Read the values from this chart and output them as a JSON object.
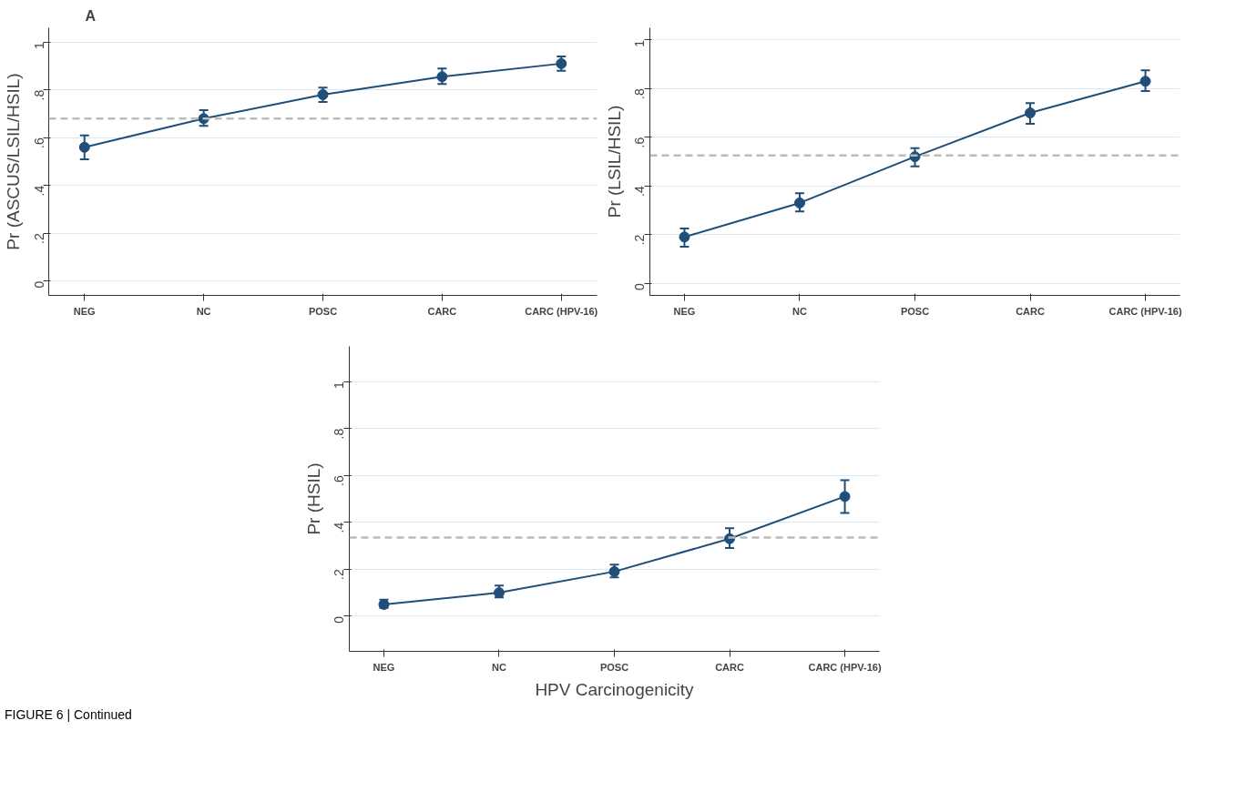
{
  "chart_data": [
    {
      "type": "line",
      "ylabel": "Pr (ASCUS/LSIL/HSIL)",
      "annotations": [
        "A"
      ],
      "categories": [
        "NEG",
        "NC",
        "POSC",
        "CARC",
        "CARC (HPV-16)"
      ],
      "series": [
        {
          "color": "#1f4e79",
          "values": [
            0.56,
            0.68,
            0.78,
            0.855,
            0.91
          ],
          "errors": [
            [
              0.51,
              0.61
            ],
            [
              0.65,
              0.715
            ],
            [
              0.75,
              0.81
            ],
            [
              0.825,
              0.89
            ],
            [
              0.88,
              0.94
            ]
          ]
        }
      ],
      "ylim": [
        -0.06,
        1.06
      ],
      "yticks": [
        0,
        {
          "value": 0.2,
          "label": ".2"
        },
        {
          "value": 0.4,
          "label": ".4"
        },
        {
          "value": 0.6,
          "label": ".6"
        },
        {
          "value": 0.8,
          "label": ".8"
        },
        1
      ],
      "ref_lines": [
        {
          "axis": "y",
          "value": 0.68,
          "color": "#bbbbbb",
          "line_style": "dashed"
        }
      ],
      "grid": "y",
      "marker": "circle",
      "line_style": "solid"
    },
    {
      "type": "line",
      "ylabel": "Pr (LSIL/HSIL)",
      "categories": [
        "NEG",
        "NC",
        "POSC",
        "CARC",
        "CARC (HPV-16)"
      ],
      "series": [
        {
          "color": "#1f4e79",
          "values": [
            0.19,
            0.33,
            0.52,
            0.7,
            0.83
          ],
          "errors": [
            [
              0.15,
              0.225
            ],
            [
              0.295,
              0.37
            ],
            [
              0.48,
              0.555
            ],
            [
              0.655,
              0.74
            ],
            [
              0.79,
              0.875
            ]
          ]
        }
      ],
      "ylim": [
        -0.05,
        1.05
      ],
      "yticks": [
        0,
        {
          "value": 0.2,
          "label": ".2"
        },
        {
          "value": 0.4,
          "label": ".4"
        },
        {
          "value": 0.6,
          "label": ".6"
        },
        {
          "value": 0.8,
          "label": ".8"
        },
        1
      ],
      "ref_lines": [
        {
          "axis": "y",
          "value": 0.525,
          "color": "#bbbbbb",
          "line_style": "dashed"
        }
      ],
      "grid": "y",
      "marker": "circle",
      "line_style": "solid"
    },
    {
      "type": "line",
      "ylabel": "Pr (HSIL)",
      "xlabel": "HPV Carcinogenicity",
      "annotations": [
        "FIGURE 6 | Continued"
      ],
      "categories": [
        "NEG",
        "NC",
        "POSC",
        "CARC",
        "CARC (HPV-16)"
      ],
      "series": [
        {
          "color": "#1f4e79",
          "values": [
            0.05,
            0.1,
            0.19,
            0.33,
            0.51
          ],
          "errors": [
            [
              0.035,
              0.07
            ],
            [
              0.08,
              0.13
            ],
            [
              0.165,
              0.22
            ],
            [
              0.29,
              0.375
            ],
            [
              0.44,
              0.58
            ]
          ]
        }
      ],
      "ylim": [
        -0.15,
        1.15
      ],
      "yticks": [
        0,
        {
          "value": 0.2,
          "label": ".2"
        },
        {
          "value": 0.4,
          "label": ".4"
        },
        {
          "value": 0.6,
          "label": ".6"
        },
        {
          "value": 0.8,
          "label": ".8"
        },
        1
      ],
      "ref_lines": [
        {
          "axis": "y",
          "value": 0.335,
          "color": "#bbbbbb",
          "line_style": "dashed"
        }
      ],
      "grid": "y",
      "marker": "circle",
      "line_style": "solid"
    }
  ]
}
